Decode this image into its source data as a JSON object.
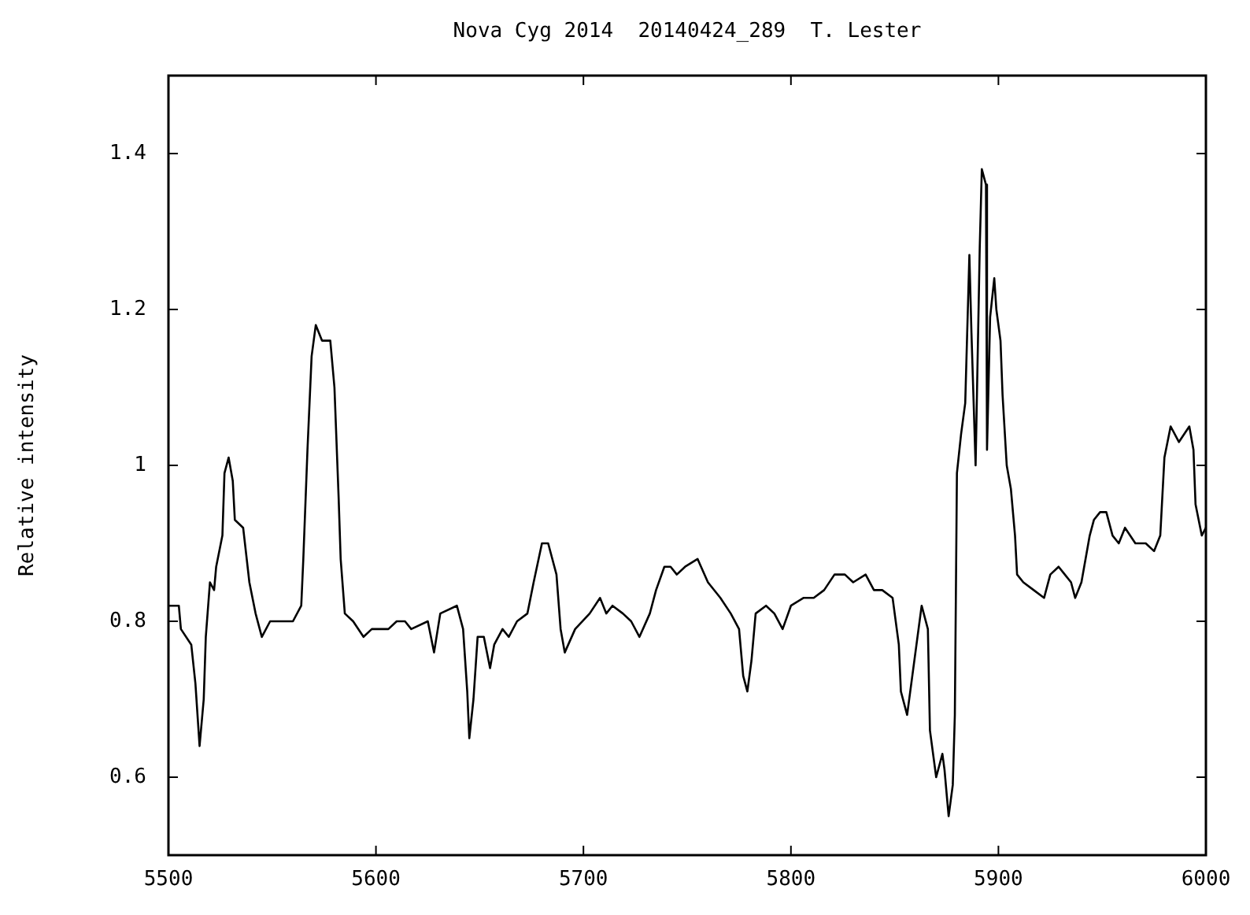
{
  "chart_data": {
    "type": "line",
    "title": "Nova Cyg 2014  20140424_289  T. Lester",
    "ylabel": "Relative intensity",
    "xlim": [
      5500,
      6000
    ],
    "xticks": [
      5500,
      5600,
      5700,
      5800,
      5900,
      6000
    ],
    "ylim": [
      0.5,
      1.5
    ],
    "yticks": [
      0.6,
      0.8,
      1,
      1.2,
      1.4
    ],
    "legend": false,
    "marker": "none",
    "line_style": "solid",
    "series": [
      {
        "color": "#000000",
        "x": [
          5500,
          5505,
          5506,
          5511,
          5513,
          5515,
          5517,
          5518,
          5520,
          5522,
          5523,
          5526,
          5527,
          5529,
          5531,
          5532,
          5536,
          5539,
          5542,
          5545,
          5549,
          5555,
          5560,
          5564,
          5565,
          5567,
          5569,
          5571,
          5574,
          5578,
          5580,
          5582,
          5583,
          5585,
          5589,
          5594,
          5598,
          5606,
          5610,
          5614,
          5617,
          5625,
          5628,
          5631,
          5639,
          5642,
          5644,
          5645,
          5647,
          5649,
          5652,
          5655,
          5657,
          5661,
          5664,
          5668,
          5673,
          5676,
          5680,
          5683,
          5687,
          5689,
          5691,
          5696,
          5703,
          5708,
          5711,
          5714,
          5719,
          5723,
          5727,
          5732,
          5735,
          5739,
          5742,
          5745,
          5749,
          5755,
          5760,
          5766,
          5771,
          5775,
          5777,
          5779,
          5781,
          5783,
          5788,
          5792,
          5796,
          5800,
          5806,
          5811,
          5816,
          5821,
          5826,
          5830,
          5836,
          5840,
          5844,
          5849,
          5852,
          5853,
          5856,
          5859,
          5863,
          5866,
          5867,
          5870,
          5873,
          5874,
          5876,
          5878,
          5879,
          5880,
          5882,
          5884,
          5886,
          5887,
          5889,
          5891,
          5892,
          5894,
          5894.5,
          5896,
          5898,
          5899,
          5901,
          5902,
          5904,
          5906,
          5908,
          5909,
          5912,
          5917,
          5922,
          5925,
          5929,
          5932,
          5935,
          5937,
          5940,
          5944,
          5946,
          5949,
          5952,
          5955,
          5958,
          5961,
          5966,
          5971,
          5975,
          5978,
          5980,
          5983,
          5987,
          5992,
          5994,
          5995,
          5998,
          6000
        ],
        "values": [
          0.82,
          0.82,
          0.79,
          0.77,
          0.72,
          0.64,
          0.7,
          0.78,
          0.85,
          0.84,
          0.87,
          0.91,
          0.99,
          1.01,
          0.98,
          0.93,
          0.92,
          0.85,
          0.81,
          0.78,
          0.8,
          0.8,
          0.8,
          0.82,
          0.88,
          1.02,
          1.14,
          1.18,
          1.16,
          1.16,
          1.1,
          0.96,
          0.88,
          0.81,
          0.8,
          0.78,
          0.79,
          0.79,
          0.8,
          0.8,
          0.79,
          0.8,
          0.76,
          0.81,
          0.82,
          0.79,
          0.71,
          0.65,
          0.7,
          0.78,
          0.78,
          0.74,
          0.77,
          0.79,
          0.78,
          0.8,
          0.81,
          0.85,
          0.9,
          0.9,
          0.86,
          0.79,
          0.76,
          0.79,
          0.81,
          0.83,
          0.81,
          0.82,
          0.81,
          0.8,
          0.78,
          0.81,
          0.84,
          0.87,
          0.87,
          0.86,
          0.87,
          0.88,
          0.85,
          0.83,
          0.81,
          0.79,
          0.73,
          0.71,
          0.75,
          0.81,
          0.82,
          0.81,
          0.79,
          0.82,
          0.83,
          0.83,
          0.84,
          0.86,
          0.86,
          0.85,
          0.86,
          0.84,
          0.84,
          0.83,
          0.77,
          0.71,
          0.68,
          0.74,
          0.82,
          0.79,
          0.66,
          0.6,
          0.63,
          0.61,
          0.55,
          0.59,
          0.68,
          0.99,
          1.04,
          1.08,
          1.27,
          1.17,
          1,
          1.28,
          1.38,
          1.36,
          1.02,
          1.19,
          1.24,
          1.2,
          1.16,
          1.09,
          1,
          0.97,
          0.91,
          0.86,
          0.85,
          0.84,
          0.83,
          0.86,
          0.87,
          0.86,
          0.85,
          0.83,
          0.85,
          0.91,
          0.93,
          0.94,
          0.94,
          0.91,
          0.9,
          0.92,
          0.9,
          0.9,
          0.89,
          0.91,
          1.01,
          1.05,
          1.03,
          1.05,
          1.02,
          0.95,
          0.91,
          0.92
        ]
      }
    ]
  }
}
